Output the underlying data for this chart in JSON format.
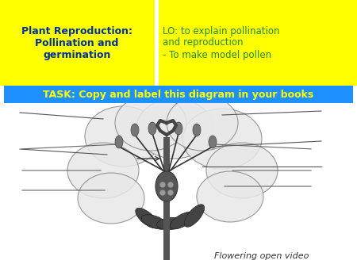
{
  "title_left": "Plant Reproduction:\nPollination and\ngermination",
  "title_right": "LO: to explain pollination\nand reproduction\n- To make model pollen",
  "task_text": "TASK: Copy and label this diagram in your books",
  "footer_text": "Flowering open video",
  "yellow_bg": "#FFFF00",
  "blue_bg": "#1E90FF",
  "title_left_color": "#003399",
  "title_right_color": "#228B22",
  "task_text_color": "#FFFF00",
  "footer_color": "#333333",
  "fig_bg": "#FFFFFF"
}
